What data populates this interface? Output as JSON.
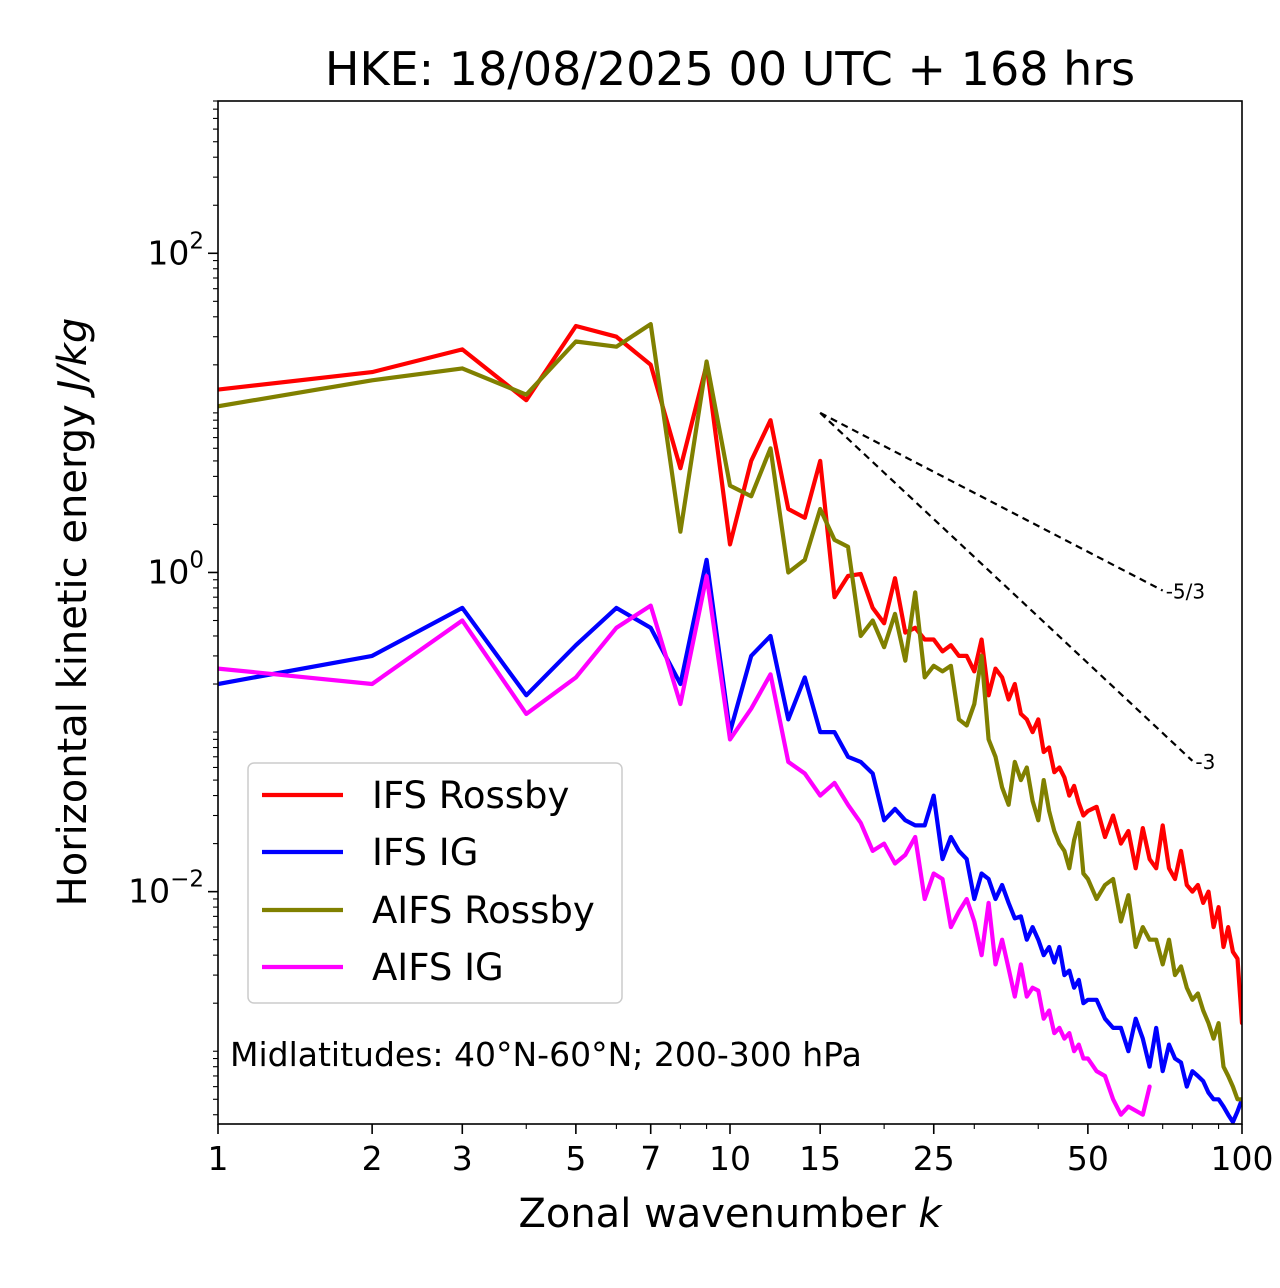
{
  "chart_data": {
    "type": "line",
    "title": "HKE: 18/08/2025 00 UTC + 168 hrs",
    "xlabel": "Zonal wavenumber",
    "xlabel_var": "k",
    "ylabel": "Horizontal kinetic energy",
    "ylabel_units": "J/kg",
    "xscale": "log",
    "yscale": "log",
    "xlim": [
      1,
      100
    ],
    "ylim": [
      0.00035,
      900
    ],
    "x_ticks": [
      1,
      2,
      3,
      5,
      7,
      10,
      15,
      25,
      50,
      100
    ],
    "x_tick_labels": [
      "1",
      "2",
      "3",
      "5",
      "7",
      "10",
      "15",
      "25",
      "50",
      "100"
    ],
    "y_ticks": [
      {
        "value": 100,
        "base": "10",
        "exp": "2"
      },
      {
        "value": 1,
        "base": "10",
        "exp": "0"
      },
      {
        "value": 0.01,
        "base": "10",
        "exp": "−2"
      }
    ],
    "legend_position": "lower-left",
    "annotation": "Midlatitudes: 40°N-60°N; 200-300 hPa",
    "series": [
      {
        "name": "IFS Rossby",
        "color": "#ff0000",
        "x": [
          1,
          2,
          3,
          4,
          5,
          6,
          7,
          8,
          9,
          10,
          11,
          12,
          13,
          14,
          15,
          16,
          17,
          18,
          19,
          20,
          21,
          22,
          23,
          24,
          25,
          26,
          27,
          28,
          29,
          30,
          31,
          32,
          33,
          34,
          35,
          36,
          37,
          38,
          39,
          40,
          41,
          42,
          43,
          44,
          45,
          46,
          47,
          48,
          49,
          50,
          52,
          54,
          56,
          58,
          60,
          62,
          64,
          66,
          68,
          70,
          72,
          74,
          76,
          78,
          80,
          82,
          84,
          86,
          88,
          90,
          92,
          94,
          96,
          98,
          100
        ],
        "y": [
          14,
          18,
          25,
          12,
          35,
          30,
          20,
          4.5,
          20,
          1.5,
          5,
          9,
          2.5,
          2.2,
          5,
          0.7,
          0.95,
          0.98,
          0.6,
          0.48,
          0.92,
          0.42,
          0.45,
          0.38,
          0.38,
          0.32,
          0.35,
          0.3,
          0.3,
          0.24,
          0.38,
          0.17,
          0.25,
          0.22,
          0.16,
          0.2,
          0.13,
          0.12,
          0.1,
          0.12,
          0.075,
          0.08,
          0.056,
          0.06,
          0.052,
          0.04,
          0.046,
          0.036,
          0.03,
          0.032,
          0.034,
          0.022,
          0.03,
          0.02,
          0.024,
          0.014,
          0.025,
          0.016,
          0.014,
          0.026,
          0.014,
          0.012,
          0.018,
          0.011,
          0.01,
          0.011,
          0.0085,
          0.01,
          0.006,
          0.008,
          0.0045,
          0.006,
          0.0042,
          0.0038,
          0.0015
        ]
      },
      {
        "name": "IFS IG",
        "color": "#0000ff",
        "x": [
          1,
          2,
          3,
          4,
          5,
          6,
          7,
          8,
          9,
          10,
          11,
          12,
          13,
          14,
          15,
          16,
          17,
          18,
          19,
          20,
          21,
          22,
          23,
          24,
          25,
          26,
          27,
          28,
          29,
          30,
          31,
          32,
          33,
          34,
          35,
          36,
          37,
          38,
          39,
          40,
          41,
          42,
          43,
          44,
          45,
          46,
          47,
          48,
          49,
          50,
          52,
          54,
          56,
          58,
          60,
          62,
          64,
          66,
          68,
          70,
          72,
          74,
          76,
          78,
          80,
          82,
          84,
          86,
          88,
          90,
          92,
          94,
          96,
          98,
          100
        ],
        "y": [
          0.2,
          0.3,
          0.6,
          0.17,
          0.35,
          0.6,
          0.45,
          0.2,
          1.2,
          0.1,
          0.3,
          0.4,
          0.12,
          0.22,
          0.1,
          0.1,
          0.07,
          0.065,
          0.055,
          0.028,
          0.033,
          0.028,
          0.026,
          0.026,
          0.04,
          0.016,
          0.022,
          0.018,
          0.016,
          0.009,
          0.013,
          0.012,
          0.009,
          0.011,
          0.0085,
          0.0068,
          0.007,
          0.005,
          0.006,
          0.005,
          0.004,
          0.0045,
          0.0036,
          0.0045,
          0.003,
          0.0032,
          0.0025,
          0.0028,
          0.002,
          0.0021,
          0.0021,
          0.0016,
          0.0014,
          0.0014,
          0.001,
          0.0016,
          0.0012,
          0.0008,
          0.0014,
          0.00075,
          0.0011,
          0.0009,
          0.00085,
          0.0006,
          0.00075,
          0.0007,
          0.00065,
          0.00055,
          0.0005,
          0.0005,
          0.00045,
          0.0004,
          0.00036,
          0.00042,
          0.0005
        ]
      },
      {
        "name": "AIFS Rossby",
        "color": "#808000",
        "x": [
          1,
          2,
          3,
          4,
          5,
          6,
          7,
          8,
          9,
          10,
          11,
          12,
          13,
          14,
          15,
          16,
          17,
          18,
          19,
          20,
          21,
          22,
          23,
          24,
          25,
          26,
          27,
          28,
          29,
          30,
          31,
          32,
          33,
          34,
          35,
          36,
          37,
          38,
          39,
          40,
          41,
          42,
          43,
          44,
          45,
          46,
          47,
          48,
          49,
          50,
          52,
          54,
          56,
          58,
          60,
          62,
          64,
          66,
          68,
          70,
          72,
          74,
          76,
          78,
          80,
          82,
          84,
          86,
          88,
          90,
          92,
          94,
          96,
          98,
          100
        ],
        "y": [
          11,
          16,
          19,
          13,
          28,
          26,
          36,
          1.8,
          21,
          3.5,
          3,
          6,
          1,
          1.2,
          2.5,
          1.6,
          1.45,
          0.4,
          0.5,
          0.34,
          0.55,
          0.28,
          0.75,
          0.22,
          0.26,
          0.24,
          0.26,
          0.12,
          0.11,
          0.15,
          0.3,
          0.09,
          0.07,
          0.045,
          0.035,
          0.065,
          0.05,
          0.06,
          0.037,
          0.028,
          0.05,
          0.032,
          0.024,
          0.02,
          0.018,
          0.014,
          0.021,
          0.027,
          0.013,
          0.012,
          0.009,
          0.011,
          0.012,
          0.0065,
          0.0095,
          0.0045,
          0.006,
          0.005,
          0.005,
          0.0035,
          0.005,
          0.003,
          0.0034,
          0.0025,
          0.0021,
          0.0023,
          0.0018,
          0.0015,
          0.0012,
          0.0015,
          0.0008,
          0.0007,
          0.0006,
          0.0005,
          0.0005
        ]
      },
      {
        "name": "AIFS IG",
        "color": "#ff00ff",
        "x": [
          1,
          2,
          3,
          4,
          5,
          6,
          7,
          8,
          9,
          10,
          11,
          12,
          13,
          14,
          15,
          16,
          17,
          18,
          19,
          20,
          21,
          22,
          23,
          24,
          25,
          26,
          27,
          28,
          29,
          30,
          31,
          32,
          33,
          34,
          35,
          36,
          37,
          38,
          39,
          40,
          41,
          42,
          43,
          44,
          45,
          46,
          47,
          48,
          49,
          50,
          52,
          54,
          56,
          58,
          60,
          64,
          66
        ],
        "y": [
          0.25,
          0.2,
          0.5,
          0.13,
          0.22,
          0.45,
          0.62,
          0.15,
          0.95,
          0.09,
          0.14,
          0.23,
          0.065,
          0.055,
          0.04,
          0.048,
          0.035,
          0.027,
          0.018,
          0.02,
          0.015,
          0.017,
          0.022,
          0.009,
          0.013,
          0.012,
          0.006,
          0.0075,
          0.009,
          0.0065,
          0.004,
          0.0085,
          0.0035,
          0.005,
          0.0033,
          0.0022,
          0.0035,
          0.0022,
          0.0025,
          0.0024,
          0.0016,
          0.0018,
          0.0013,
          0.0014,
          0.0012,
          0.0013,
          0.001,
          0.0011,
          0.0009,
          0.0009,
          0.00075,
          0.0007,
          0.0005,
          0.0004,
          0.00045,
          0.0004,
          0.0006
        ]
      }
    ],
    "reference_slopes": [
      {
        "label": "-5/3",
        "x": [
          15,
          70
        ],
        "y": [
          10,
          0.77
        ]
      },
      {
        "label": "-3",
        "x": [
          15,
          80
        ],
        "y": [
          10,
          0.066
        ]
      }
    ]
  }
}
